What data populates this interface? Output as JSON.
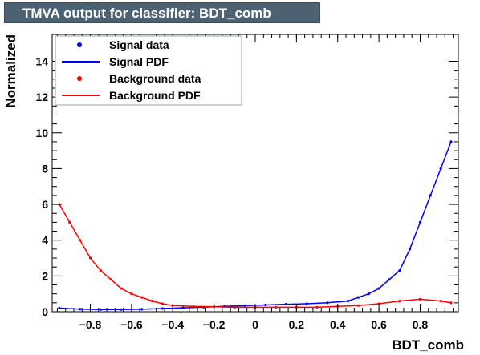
{
  "title": "TMVA output for classifier: BDT_comb",
  "chart_data": {
    "type": "line",
    "title": "TMVA output for classifier: BDT_comb",
    "xlabel": "BDT_comb",
    "ylabel": "Normalized",
    "xlim": [
      -0.985,
      0.985
    ],
    "ylim": [
      0,
      15.5
    ],
    "x_ticks": [
      -0.8,
      -0.6,
      -0.4,
      -0.2,
      0,
      0.2,
      0.4,
      0.6,
      0.8
    ],
    "x_tick_labels": [
      "−0.8",
      "−0.6",
      "−0.4",
      "−0.2",
      "0",
      "0.2",
      "0.4",
      "0.6",
      "0.8"
    ],
    "y_ticks": [
      0,
      2,
      4,
      6,
      8,
      10,
      12,
      14
    ],
    "y_tick_labels": [
      "0",
      "2",
      "4",
      "6",
      "8",
      "10",
      "12",
      "14"
    ],
    "legend": {
      "placement": "top-left",
      "entries": [
        {
          "label": "Signal data",
          "style": "marker",
          "color": "#0000ff"
        },
        {
          "label": "Signal PDF",
          "style": "line",
          "color": "#0000ff"
        },
        {
          "label": "Background data",
          "style": "marker",
          "color": "#ff0000"
        },
        {
          "label": "Background PDF",
          "style": "line",
          "color": "#ff0000"
        }
      ]
    },
    "series": [
      {
        "name": "Signal PDF",
        "color": "#0000ff",
        "x": [
          -0.95,
          -0.85,
          -0.75,
          -0.65,
          -0.55,
          -0.45,
          -0.35,
          -0.25,
          -0.15,
          -0.05,
          0.05,
          0.15,
          0.25,
          0.35,
          0.45,
          0.5,
          0.55,
          0.6,
          0.65,
          0.7,
          0.75,
          0.8,
          0.85,
          0.9,
          0.95
        ],
        "values": [
          0.2,
          0.15,
          0.12,
          0.12,
          0.14,
          0.18,
          0.22,
          0.26,
          0.3,
          0.34,
          0.38,
          0.42,
          0.45,
          0.5,
          0.6,
          0.8,
          1.0,
          1.3,
          1.8,
          2.3,
          3.5,
          5.0,
          6.5,
          8.0,
          9.5
        ]
      },
      {
        "name": "Background PDF",
        "color": "#ff0000",
        "x": [
          -0.95,
          -0.9,
          -0.85,
          -0.8,
          -0.75,
          -0.7,
          -0.65,
          -0.6,
          -0.55,
          -0.5,
          -0.45,
          -0.4,
          -0.3,
          -0.2,
          -0.1,
          0,
          0.1,
          0.2,
          0.3,
          0.4,
          0.5,
          0.6,
          0.7,
          0.8,
          0.9,
          0.95
        ],
        "values": [
          6.0,
          5.0,
          4.0,
          3.0,
          2.3,
          1.8,
          1.3,
          1.0,
          0.8,
          0.6,
          0.45,
          0.35,
          0.3,
          0.28,
          0.25,
          0.25,
          0.25,
          0.25,
          0.25,
          0.3,
          0.35,
          0.45,
          0.6,
          0.7,
          0.6,
          0.5
        ]
      }
    ]
  }
}
